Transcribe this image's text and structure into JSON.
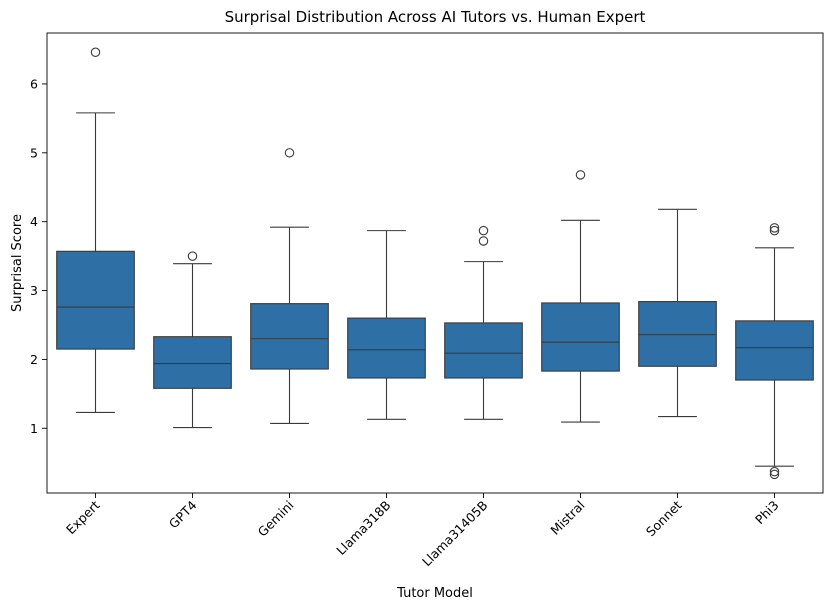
{
  "chart_data": {
    "type": "box",
    "title": "Surprisal Distribution Across AI Tutors vs. Human Expert",
    "xlabel": "Tutor Model",
    "ylabel": "Surprisal Score",
    "ylim": [
      0.06,
      6.74
    ],
    "yticks": [
      1,
      2,
      3,
      4,
      5,
      6
    ],
    "box_color": "#2e6fa5",
    "edge_color": "#3a3a3a",
    "grid": false,
    "categories": [
      "Expert",
      "GPT4",
      "Gemini",
      "Llama318B",
      "Llama31405B",
      "Mistral",
      "Sonnet",
      "Phi3"
    ],
    "boxes": [
      {
        "q1": 2.15,
        "median": 2.76,
        "q3": 3.57,
        "whisker_low": 1.23,
        "whisker_high": 5.58,
        "outliers": [
          6.46
        ]
      },
      {
        "q1": 1.58,
        "median": 1.94,
        "q3": 2.33,
        "whisker_low": 1.01,
        "whisker_high": 3.39,
        "outliers": [
          3.5
        ]
      },
      {
        "q1": 1.86,
        "median": 2.3,
        "q3": 2.81,
        "whisker_low": 1.07,
        "whisker_high": 3.92,
        "outliers": [
          5.0
        ]
      },
      {
        "q1": 1.73,
        "median": 2.14,
        "q3": 2.6,
        "whisker_low": 1.13,
        "whisker_high": 3.87,
        "outliers": []
      },
      {
        "q1": 1.73,
        "median": 2.09,
        "q3": 2.53,
        "whisker_low": 1.13,
        "whisker_high": 3.42,
        "outliers": [
          3.72,
          3.87
        ]
      },
      {
        "q1": 1.83,
        "median": 2.25,
        "q3": 2.82,
        "whisker_low": 1.09,
        "whisker_high": 4.02,
        "outliers": [
          4.68
        ]
      },
      {
        "q1": 1.9,
        "median": 2.36,
        "q3": 2.84,
        "whisker_low": 1.17,
        "whisker_high": 4.18,
        "outliers": []
      },
      {
        "q1": 1.7,
        "median": 2.17,
        "q3": 2.56,
        "whisker_low": 0.45,
        "whisker_high": 3.62,
        "outliers": [
          3.87,
          3.91,
          0.37,
          0.33
        ]
      }
    ]
  }
}
